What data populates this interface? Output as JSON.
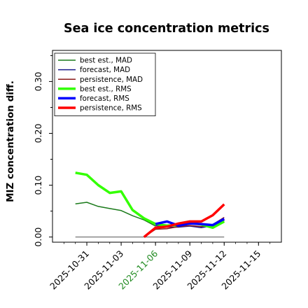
{
  "chart_data": {
    "type": "line",
    "title": "Sea ice concentration metrics",
    "xlabel": "",
    "ylabel": "MIZ concentration diff.",
    "ylim": [
      -0.01,
      0.36
    ],
    "xlim": [
      "2025-10-28",
      "2025-11-17"
    ],
    "yticks": [
      "0.00",
      "0.10",
      "0.20",
      "0.30"
    ],
    "xticks": [
      "2025-10-31",
      "2025-11-03",
      "2025-11-06",
      "2025-11-09",
      "2025-11-12",
      "2025-11-15"
    ],
    "highlighted_xtick": "2025-11-06",
    "highlight_color": "#228b22",
    "grid": false,
    "legend_position": "top-left",
    "series": [
      {
        "name": "best est., MAD",
        "color": "#1a7a1a",
        "x": [
          "2025-10-30",
          "2025-10-31",
          "2025-11-01",
          "2025-11-02",
          "2025-11-03",
          "2025-11-04",
          "2025-11-05",
          "2025-11-06"
        ],
        "values": [
          0.064,
          0.067,
          0.059,
          0.055,
          0.051,
          0.041,
          0.033,
          0.021
        ]
      },
      {
        "name": "forecast,  MAD",
        "color": "#1a1a8c",
        "x": [
          "2025-11-06",
          "2025-11-07",
          "2025-11-08",
          "2025-11-09",
          "2025-11-10",
          "2025-11-11",
          "2025-11-12"
        ],
        "values": [
          0.022,
          0.019,
          0.019,
          0.021,
          0.018,
          0.022,
          0.032
        ]
      },
      {
        "name": "persistence, MAD",
        "color": "#8b1a1a",
        "x": [
          "2025-11-05",
          "2025-11-06",
          "2025-11-07",
          "2025-11-08",
          "2025-11-09",
          "2025-11-10",
          "2025-11-11",
          "2025-11-12"
        ],
        "values": [
          0.0,
          0.015,
          0.016,
          0.02,
          0.022,
          0.02,
          0.024,
          0.038
        ]
      },
      {
        "name": "best est., RMS",
        "color": "#33ff00",
        "x": [
          "2025-10-30",
          "2025-10-31",
          "2025-11-01",
          "2025-11-02",
          "2025-11-03",
          "2025-11-04",
          "2025-11-05",
          "2025-11-06",
          "2025-11-07",
          "2025-11-08",
          "2025-11-09",
          "2025-11-10",
          "2025-11-11",
          "2025-11-12"
        ],
        "values": [
          0.124,
          0.12,
          0.1,
          0.085,
          0.088,
          0.052,
          0.036,
          0.025,
          0.022,
          0.023,
          0.028,
          0.024,
          0.018,
          0.03
        ]
      },
      {
        "name": "forecast,  RMS",
        "color": "#0000ff",
        "x": [
          "2025-11-06",
          "2025-11-07",
          "2025-11-08",
          "2025-11-09",
          "2025-11-10",
          "2025-11-11",
          "2025-11-12"
        ],
        "values": [
          0.025,
          0.03,
          0.022,
          0.026,
          0.025,
          0.023,
          0.035
        ]
      },
      {
        "name": "persistence, RMS",
        "color": "#ff0000",
        "x": [
          "2025-11-05",
          "2025-11-06",
          "2025-11-07",
          "2025-11-08",
          "2025-11-09",
          "2025-11-10",
          "2025-11-11",
          "2025-11-12"
        ],
        "values": [
          0.0,
          0.018,
          0.02,
          0.026,
          0.03,
          0.03,
          0.042,
          0.063
        ]
      }
    ],
    "reference_line": {
      "y": 0.0,
      "color": "#555555",
      "x": [
        "2025-10-30",
        "2025-11-12"
      ]
    }
  }
}
